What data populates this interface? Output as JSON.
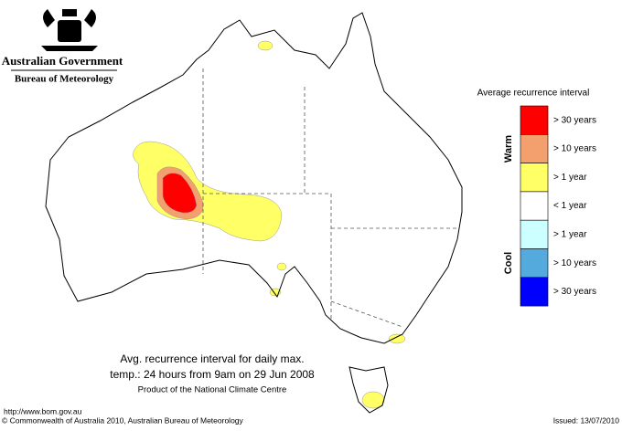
{
  "header": {
    "government": "Australian Government",
    "bureau": "Bureau of Meteorology"
  },
  "legend": {
    "title": "Average recurrence interval",
    "warm_label": "Warm",
    "cool_label": "Cool",
    "items": [
      {
        "label": "> 30 years",
        "color": "#ff0000"
      },
      {
        "label": "> 10 years",
        "color": "#f4a06e"
      },
      {
        "label": "> 1 year",
        "color": "#ffff66"
      },
      {
        "label": "< 1 year",
        "color": "#ffffff"
      },
      {
        "label": "> 1 year",
        "color": "#ccffff"
      },
      {
        "label": "> 10 years",
        "color": "#55aadd"
      },
      {
        "label": "> 30 years",
        "color": "#0000ff"
      }
    ]
  },
  "caption": {
    "line1": "Avg. recurrence interval for daily max.",
    "line2": "temp.: 24 hours from 9am on 29 Jun 2008",
    "line3": "Product of the National Climate Centre"
  },
  "footer": {
    "url": "http://www.bom.gov.au",
    "copyright": "© Commonwealth of Australia 2010, Australian Bureau of Meteorology",
    "issued": "Issued: 13/07/2010"
  }
}
